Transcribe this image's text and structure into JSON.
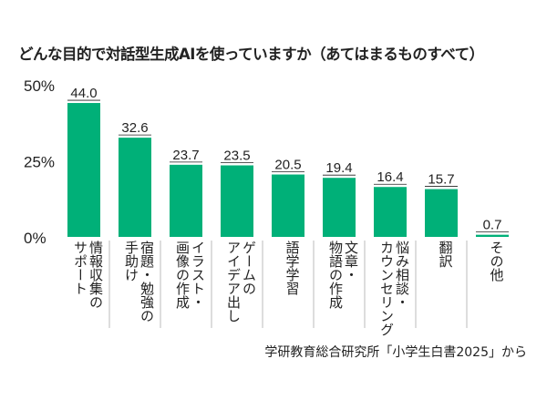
{
  "chart_data": {
    "type": "bar",
    "title": "どんな目的で対話型生成AIを使っていますか（あてはまるものすべて）",
    "categories": [
      [
        "情報収集の",
        "サポート"
      ],
      [
        "宿題・勉強の",
        "手助け"
      ],
      [
        "イラスト・",
        "画像の作成"
      ],
      [
        "ゲームの",
        "アイデア出し"
      ],
      [
        "語学学習"
      ],
      [
        "文章・",
        "物語の作成"
      ],
      [
        "悩み相談・",
        "カウンセリング"
      ],
      [
        "翻訳"
      ],
      [
        "その他"
      ]
    ],
    "values": [
      44.0,
      32.6,
      23.7,
      23.5,
      20.5,
      19.4,
      16.4,
      15.7,
      0.7
    ],
    "value_labels": [
      "44.0",
      "32.6",
      "23.7",
      "23.5",
      "20.5",
      "19.4",
      "16.4",
      "15.7",
      "0.7"
    ],
    "yticks": [
      "0%",
      "25%",
      "50%"
    ],
    "ylim": [
      0,
      50
    ],
    "grid": false,
    "bar_color": "#00b078",
    "source": "学研教育総合研究所「小学生白書2025」から"
  }
}
